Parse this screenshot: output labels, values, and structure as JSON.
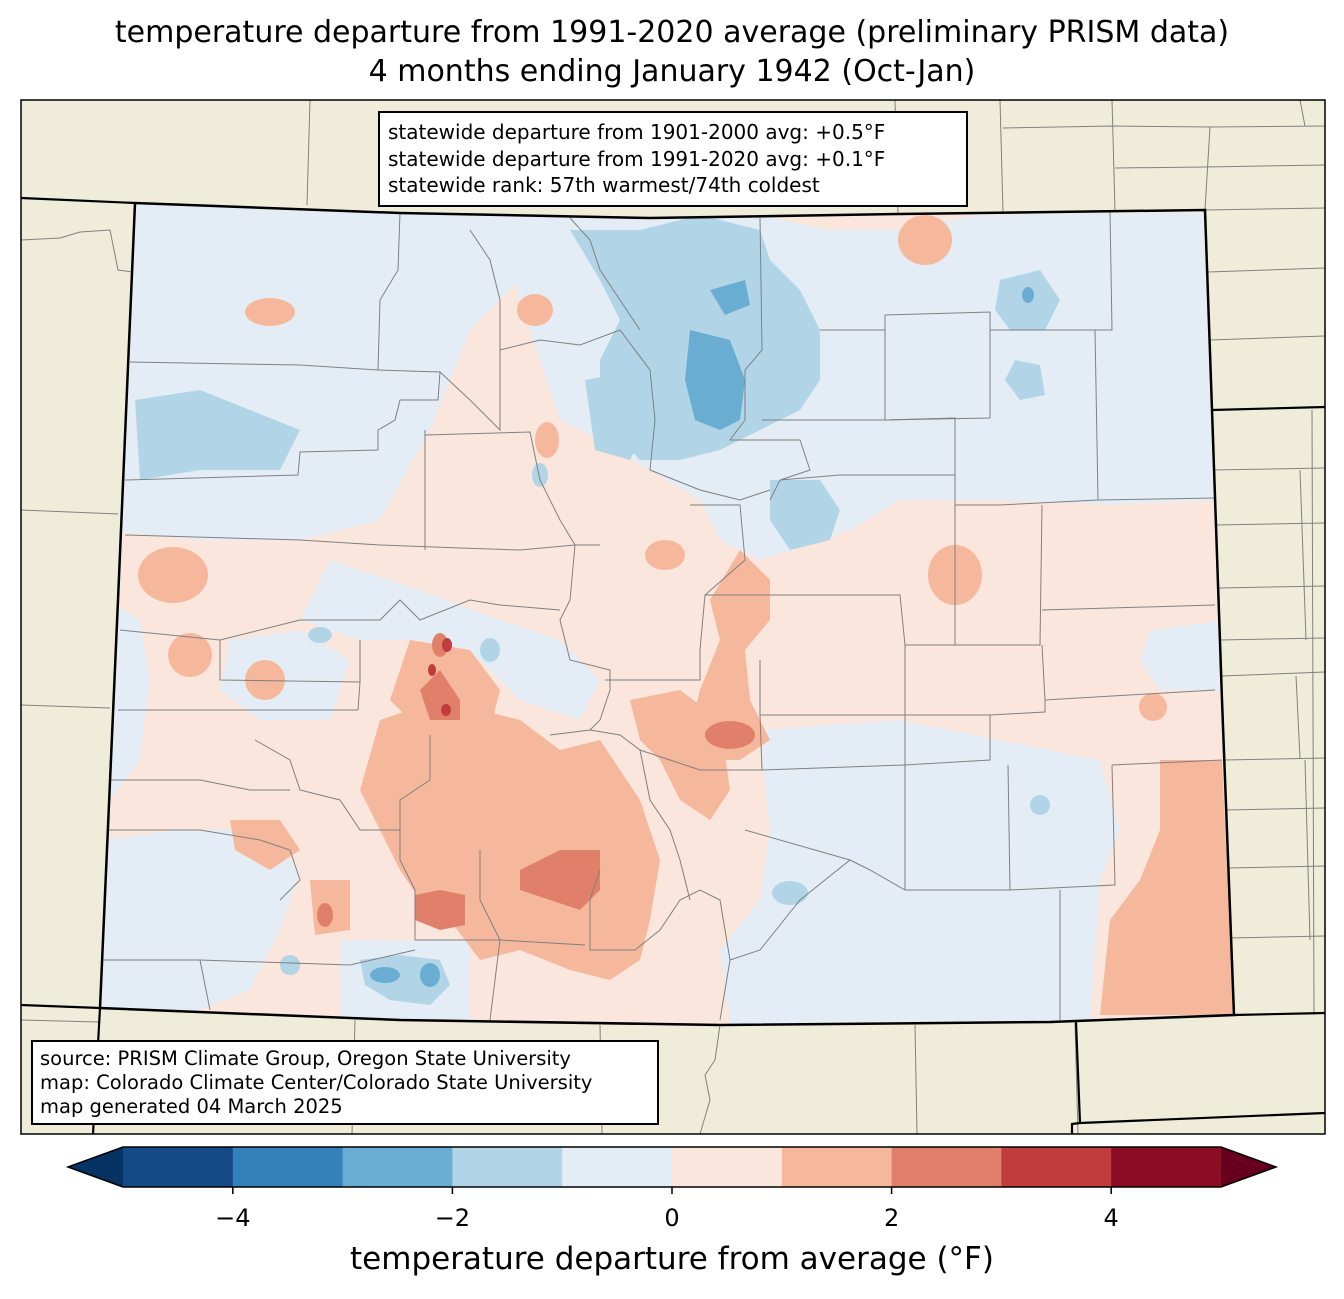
{
  "title": {
    "line1": "temperature departure from 1991-2020 average (preliminary PRISM data)",
    "line2": "4 months ending January 1942 (Oct-Jan)"
  },
  "stats_box": {
    "line1": "statewide departure from 1901-2000 avg: +0.5°F",
    "line2": "statewide departure from 1991-2020 avg: +0.1°F",
    "line3": "statewide rank: 57th warmest/74th coldest"
  },
  "source_box": {
    "line1": "source: PRISM Climate Group, Oregon State University",
    "line2": "map: Colorado Climate Center/Colorado State University",
    "line3": "map generated 04 March 2025"
  },
  "colorbar": {
    "label": "temperature departure from average (°F)",
    "bins": [
      {
        "min": -5,
        "max": -4,
        "color": "#154a86"
      },
      {
        "min": -4,
        "max": -3,
        "color": "#3581bc"
      },
      {
        "min": -3,
        "max": -2,
        "color": "#6aadd3"
      },
      {
        "min": -2,
        "max": -1,
        "color": "#b1d5e7"
      },
      {
        "min": -1,
        "max": 0,
        "color": "#e4edf5"
      },
      {
        "min": 0,
        "max": 1,
        "color": "#fae6dc"
      },
      {
        "min": 1,
        "max": 2,
        "color": "#f6b89c"
      },
      {
        "min": 2,
        "max": 3,
        "color": "#e0806a"
      },
      {
        "min": 3,
        "max": 4,
        "color": "#c13c3c"
      },
      {
        "min": 4,
        "max": 5,
        "color": "#8a0d24"
      }
    ],
    "under_color": "#063264",
    "over_color": "#66001e",
    "ticks": [
      {
        "value": -4,
        "label": "−4"
      },
      {
        "value": -2,
        "label": "−2"
      },
      {
        "value": 0,
        "label": "0"
      },
      {
        "value": 2,
        "label": "2"
      },
      {
        "value": 4,
        "label": "4"
      }
    ]
  },
  "colors": {
    "land_outside": "#efedda",
    "county_line": "#808080",
    "state_line": "#000000"
  }
}
